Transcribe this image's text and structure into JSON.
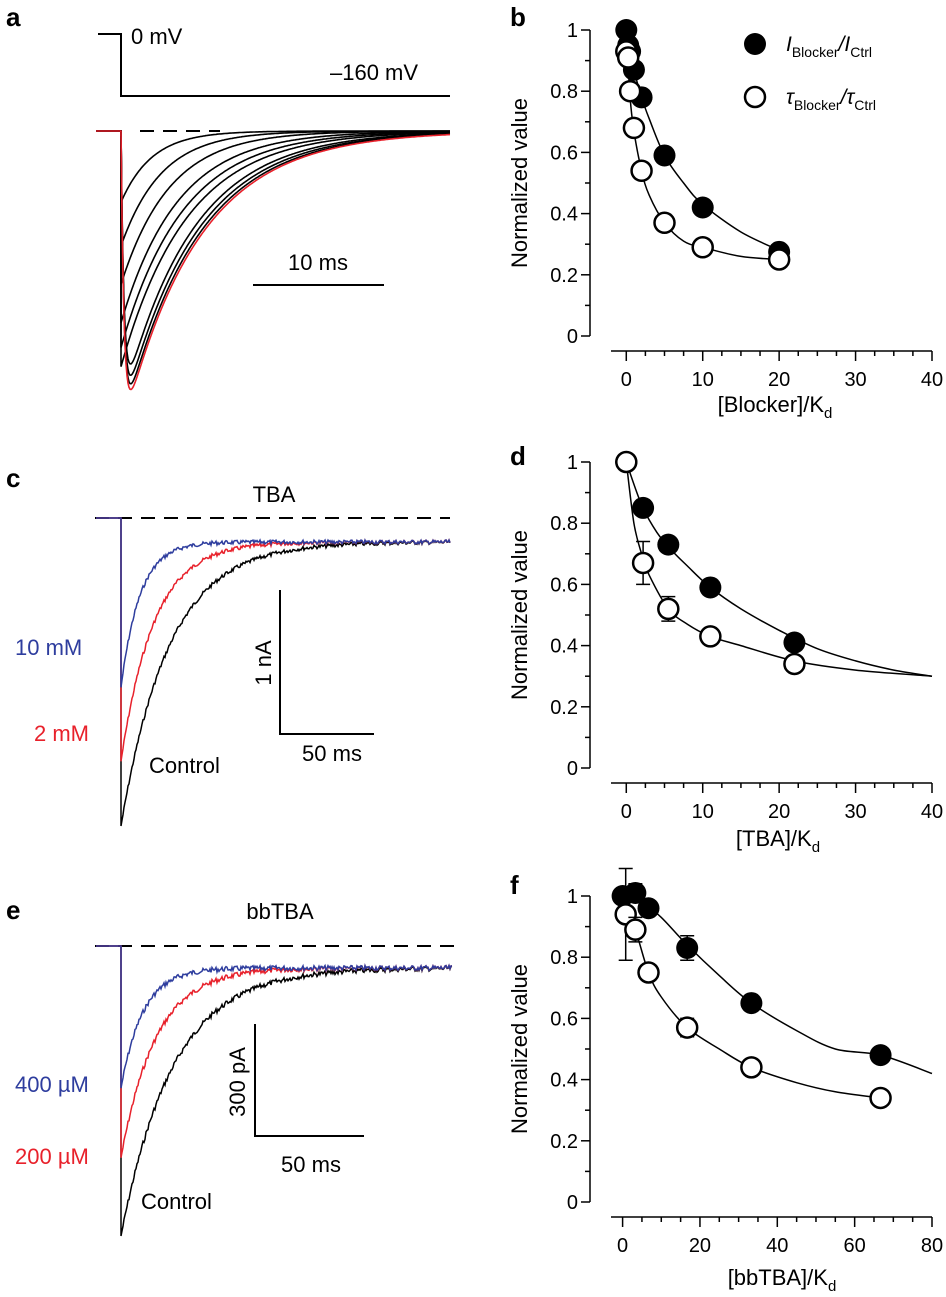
{
  "panels": {
    "a": {
      "letter": "a"
    },
    "b": {
      "letter": "b"
    },
    "c": {
      "letter": "c"
    },
    "d": {
      "letter": "d"
    },
    "e": {
      "letter": "e"
    },
    "f": {
      "letter": "f"
    }
  },
  "colors": {
    "black": "#000000",
    "red": "#e8212b",
    "blue": "#2e3d9e",
    "dash": "#000000"
  },
  "traces": {
    "a": {
      "protocol": {
        "hold": "0 mV",
        "step": "–160 mV"
      },
      "scalebar_time": "10 ms",
      "peaks": [
        0.26,
        0.42,
        0.56,
        0.7,
        0.79,
        0.86,
        0.91,
        0.95,
        0.98
      ],
      "red_peak": 1.0
    },
    "c": {
      "title": "TBA",
      "labels": {
        "blue": "10 mM",
        "red": "2 mM",
        "black": "Control"
      },
      "scalebar_amp": "1 nA",
      "scalebar_time": "50 ms",
      "peaks": {
        "blue": 0.55,
        "red": 0.79,
        "black": 1.0
      }
    },
    "e": {
      "title": "bbTBA",
      "labels": {
        "blue": "400 µM",
        "red": "200 µM",
        "black": "Control"
      },
      "scalebar_amp": "300 pA",
      "scalebar_time": "50 ms",
      "peaks": {
        "blue": 0.49,
        "red": 0.73,
        "black": 1.0
      }
    }
  },
  "chart_data": [
    {
      "panel": "b",
      "type": "scatter",
      "xlabel": "[Blocker]/K",
      "xlabel_sub": "d",
      "ylabel": "Normalized value",
      "xlim": [
        -2,
        40
      ],
      "ylim": [
        0,
        1
      ],
      "xticks": [
        0,
        10,
        20,
        30,
        40
      ],
      "yticks": [
        0,
        0.2,
        0.4,
        0.6,
        0.8,
        1
      ],
      "ytick_labels": [
        "0",
        "0.2",
        "0.4",
        "0.6",
        "0.8",
        "1"
      ],
      "legend": [
        {
          "name": "I",
          "sub": "Blocker",
          "mid": "/I",
          "sub2": "Ctrl",
          "marker": "filled"
        },
        {
          "name": "τ",
          "sub": "Blocker",
          "mid": "/τ",
          "sub2": "Ctrl",
          "marker": "open"
        }
      ],
      "series": [
        {
          "marker": "filled",
          "x": [
            0,
            0.25,
            0.5,
            1,
            2,
            5,
            10,
            20
          ],
          "y": [
            1.0,
            0.95,
            0.93,
            0.87,
            0.78,
            0.59,
            0.42,
            0.275
          ]
        },
        {
          "marker": "open",
          "x": [
            0,
            0.25,
            0.5,
            1,
            2,
            5,
            10,
            20
          ],
          "y": [
            0.93,
            0.91,
            0.8,
            0.68,
            0.54,
            0.37,
            0.29,
            0.25
          ]
        }
      ],
      "fits": [
        {
          "x": [
            0,
            0.5,
            1,
            2,
            3,
            5,
            7.5,
            10,
            15,
            20
          ],
          "y": [
            1.0,
            0.93,
            0.87,
            0.78,
            0.71,
            0.59,
            0.5,
            0.43,
            0.34,
            0.28
          ]
        },
        {
          "x": [
            0,
            0.5,
            1,
            2,
            3,
            5,
            7.5,
            10,
            15,
            20
          ],
          "y": [
            1.0,
            0.78,
            0.67,
            0.54,
            0.46,
            0.37,
            0.31,
            0.29,
            0.26,
            0.25
          ]
        }
      ]
    },
    {
      "panel": "d",
      "type": "scatter",
      "xlabel": "[TBA]/K",
      "xlabel_sub": "d",
      "ylabel": "Normalized value",
      "xlim": [
        -2,
        40
      ],
      "ylim": [
        0,
        1
      ],
      "xticks": [
        0,
        10,
        20,
        30,
        40
      ],
      "yticks": [
        0,
        0.2,
        0.4,
        0.6,
        0.8,
        1
      ],
      "ytick_labels": [
        "0",
        "0.2",
        "0.4",
        "0.6",
        "0.8",
        "1"
      ],
      "series": [
        {
          "marker": "filled",
          "x": [
            0,
            2.2,
            5.5,
            11,
            22
          ],
          "y": [
            1.0,
            0.85,
            0.73,
            0.59,
            0.41
          ],
          "err": [
            0.02,
            0.02,
            0.02,
            0.02,
            0.02
          ]
        },
        {
          "marker": "open",
          "x": [
            0,
            2.2,
            5.5,
            11,
            22
          ],
          "y": [
            1.0,
            0.67,
            0.52,
            0.43,
            0.34
          ],
          "err": [
            0.02,
            0.07,
            0.04,
            0.02,
            0.02
          ]
        }
      ],
      "fits": [
        {
          "x": [
            0,
            2,
            4,
            6,
            8,
            11,
            15,
            20,
            25,
            30,
            35,
            40
          ],
          "y": [
            1.0,
            0.86,
            0.77,
            0.71,
            0.66,
            0.59,
            0.52,
            0.45,
            0.39,
            0.35,
            0.32,
            0.3
          ]
        },
        {
          "x": [
            0,
            1,
            2,
            3,
            5.5,
            8,
            11,
            15,
            22,
            30,
            40
          ],
          "y": [
            1.0,
            0.8,
            0.7,
            0.63,
            0.52,
            0.47,
            0.43,
            0.4,
            0.35,
            0.32,
            0.3
          ]
        }
      ]
    },
    {
      "panel": "f",
      "type": "scatter",
      "xlabel": "[bbTBA]/K",
      "xlabel_sub": "d",
      "ylabel": "Normalized value",
      "xlim": [
        -3,
        80
      ],
      "ylim": [
        0,
        1
      ],
      "xticks": [
        0,
        20,
        40,
        60,
        80
      ],
      "yticks": [
        0,
        0.2,
        0.4,
        0.6,
        0.8,
        1
      ],
      "ytick_labels": [
        "0",
        "0.2",
        "0.4",
        "0.6",
        "0.8",
        "1"
      ],
      "series": [
        {
          "marker": "filled",
          "x": [
            0,
            3.3,
            6.7,
            16.7,
            33.3,
            66.7
          ],
          "y": [
            1.0,
            1.01,
            0.96,
            0.83,
            0.65,
            0.48
          ],
          "err": [
            0.02,
            0.03,
            0.02,
            0.04,
            0.02,
            0.02
          ]
        },
        {
          "marker": "open",
          "x": [
            0.8,
            3.3,
            6.7,
            16.7,
            33.3,
            66.7
          ],
          "y": [
            0.94,
            0.89,
            0.75,
            0.57,
            0.44,
            0.34
          ],
          "err": [
            0.15,
            0.04,
            0.02,
            0.03,
            0.02,
            0.02
          ]
        }
      ],
      "fits": [
        {
          "x": [
            0,
            5,
            10,
            16.7,
            25,
            33.3,
            45,
            55,
            66.7,
            80
          ],
          "y": [
            1.0,
            0.98,
            0.93,
            0.84,
            0.74,
            0.65,
            0.56,
            0.5,
            0.48,
            0.42
          ]
        },
        {
          "x": [
            0,
            3.3,
            6.7,
            10,
            16.7,
            25,
            33.3,
            45,
            55,
            66.7
          ],
          "y": [
            1.0,
            0.89,
            0.75,
            0.67,
            0.57,
            0.5,
            0.44,
            0.39,
            0.36,
            0.34
          ]
        }
      ]
    }
  ]
}
